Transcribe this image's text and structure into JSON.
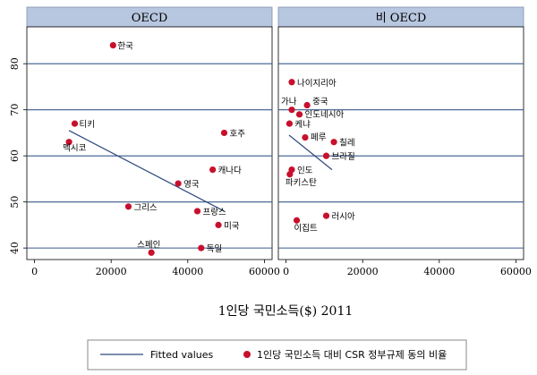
{
  "chart_data": {
    "type": "scatter",
    "xlabel": "1인당 국민소득($) 2011",
    "xticks": [
      0,
      20000,
      40000,
      60000
    ],
    "xtick_labels": [
      "0",
      "20000",
      "40000",
      "60000"
    ],
    "yticks": [
      40,
      50,
      60,
      70,
      80
    ],
    "xlim": [
      -2000,
      62000
    ],
    "ylim": [
      37.5,
      88
    ],
    "grid": true,
    "legend": {
      "placement": "bottom",
      "entries": [
        {
          "name": "Fitted values",
          "kind": "line"
        },
        {
          "name": "1인당 국민소득 대비 CSR 정부규제 동의 비율",
          "kind": "marker"
        }
      ]
    },
    "colors": {
      "point": "#c8102e",
      "fit_line": "#2e4a7d",
      "grid": "#3a5a8c",
      "header_bg": "#b8c7e0"
    },
    "panels": [
      {
        "title": "OECD",
        "points": [
          {
            "label": "한국",
            "x": 20500,
            "y": 84
          },
          {
            "label": "티키",
            "x": 10500,
            "y": 67
          },
          {
            "label": "멕시코",
            "x": 9000,
            "y": 63
          },
          {
            "label": "호주",
            "x": 49500,
            "y": 65
          },
          {
            "label": "캐나다",
            "x": 46500,
            "y": 57
          },
          {
            "label": "영국",
            "x": 37500,
            "y": 54
          },
          {
            "label": "그리스",
            "x": 24500,
            "y": 49
          },
          {
            "label": "프랑스",
            "x": 42500,
            "y": 48
          },
          {
            "label": "미국",
            "x": 48000,
            "y": 45
          },
          {
            "label": "스페인",
            "x": 30500,
            "y": 39
          },
          {
            "label": "독일",
            "x": 43500,
            "y": 40
          }
        ],
        "fit": {
          "x": [
            9000,
            49500
          ],
          "y": [
            65.5,
            48
          ]
        }
      },
      {
        "title": "비 OECD",
        "points": [
          {
            "label": "나이지리아",
            "x": 1500,
            "y": 76
          },
          {
            "label": "가나",
            "x": 1500,
            "y": 70
          },
          {
            "label": "중국",
            "x": 5500,
            "y": 71
          },
          {
            "label": "인도네시아",
            "x": 3500,
            "y": 69
          },
          {
            "label": "케냐",
            "x": 900,
            "y": 67
          },
          {
            "label": "페루",
            "x": 5000,
            "y": 64
          },
          {
            "label": "칠레",
            "x": 12500,
            "y": 63
          },
          {
            "label": "브라질",
            "x": 10500,
            "y": 60
          },
          {
            "label": "인도",
            "x": 1500,
            "y": 57
          },
          {
            "label": "파키스탄",
            "x": 1000,
            "y": 56
          },
          {
            "label": "러시아",
            "x": 10500,
            "y": 47
          },
          {
            "label": "이집트",
            "x": 2800,
            "y": 46
          }
        ],
        "fit": {
          "x": [
            800,
            12000
          ],
          "y": [
            64.5,
            57
          ]
        }
      }
    ]
  }
}
